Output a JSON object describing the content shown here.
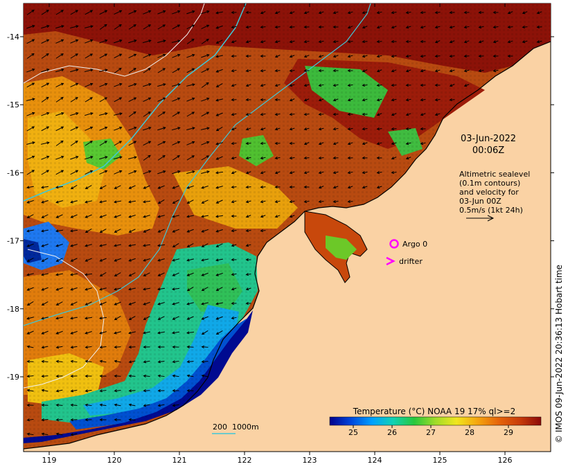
{
  "map": {
    "date": "03-Jun-2022",
    "time": "00:06Z",
    "altimetry_lines": [
      "Altimetric sealevel",
      "(0.1m contours)",
      "and velocity for",
      "03-Jun 00Z",
      "0.5m/s (1kt 24h)"
    ],
    "legend_argo": "Argo 0",
    "legend_drifter": "drifter",
    "bathy_label": "200  1000m",
    "colorbar_title": "Temperature (°C) NOAA 19 17% ql>=2",
    "colorbar_ticks": [
      "25",
      "26",
      "27",
      "28",
      "29"
    ],
    "x_ticks": [
      "119",
      "120",
      "121",
      "122",
      "123",
      "124",
      "125",
      "126"
    ],
    "y_ticks": [
      "-14",
      "-15",
      "-16",
      "-17",
      "-18",
      "-19"
    ],
    "credit": "© IMOS 09-Jun-2022 20:36:13 Hobart time",
    "colors": {
      "land": "#fad2a4",
      "argo": "#ff00ff",
      "drifter": "#ff00ff",
      "bathy_line": "#3ec8d8",
      "sst_scale": [
        "#00008c",
        "#0046dc",
        "#00a0ff",
        "#10d2b4",
        "#28c83c",
        "#a0dc28",
        "#f0e61e",
        "#f5a50f",
        "#e6640a",
        "#c83c0a",
        "#8c0a0a"
      ]
    }
  }
}
